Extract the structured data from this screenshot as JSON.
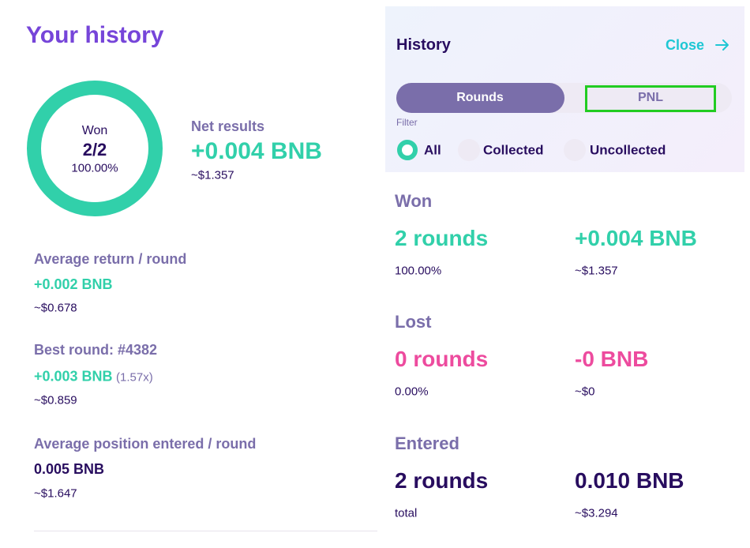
{
  "left": {
    "title": "Your history",
    "donut": {
      "label": "Won",
      "value": "2/2",
      "percent": "100.00%"
    },
    "net": {
      "label": "Net results",
      "value": "+0.004 BNB",
      "usd": "~$1.357"
    },
    "stats": [
      {
        "label": "Average return / round",
        "value": "+0.002 BNB",
        "usd": "~$0.678"
      },
      {
        "label": "Best round: #4382",
        "value": "+0.003 BNB",
        "extra": "(1.57x)",
        "usd": "~$0.859"
      },
      {
        "label": "Average position entered / round",
        "value": "0.005 BNB",
        "usd": "~$1.647"
      }
    ]
  },
  "right": {
    "title": "History",
    "close": "Close",
    "tabs": [
      "Rounds",
      "PNL"
    ],
    "filter_label": "Filter",
    "filters": [
      "All",
      "Collected",
      "Uncollected"
    ],
    "sections": [
      {
        "heading": "Won",
        "rounds": "2 rounds",
        "rounds_sub": "100.00%",
        "amount": "+0.004 BNB",
        "amount_sub": "~$1.357"
      },
      {
        "heading": "Lost",
        "rounds": "0 rounds",
        "rounds_sub": "0.00%",
        "amount": "-0 BNB",
        "amount_sub": "~$0"
      },
      {
        "heading": "Entered",
        "rounds": "2 rounds",
        "rounds_sub": "total",
        "amount": "0.010 BNB",
        "amount_sub": "~$3.294"
      }
    ]
  }
}
